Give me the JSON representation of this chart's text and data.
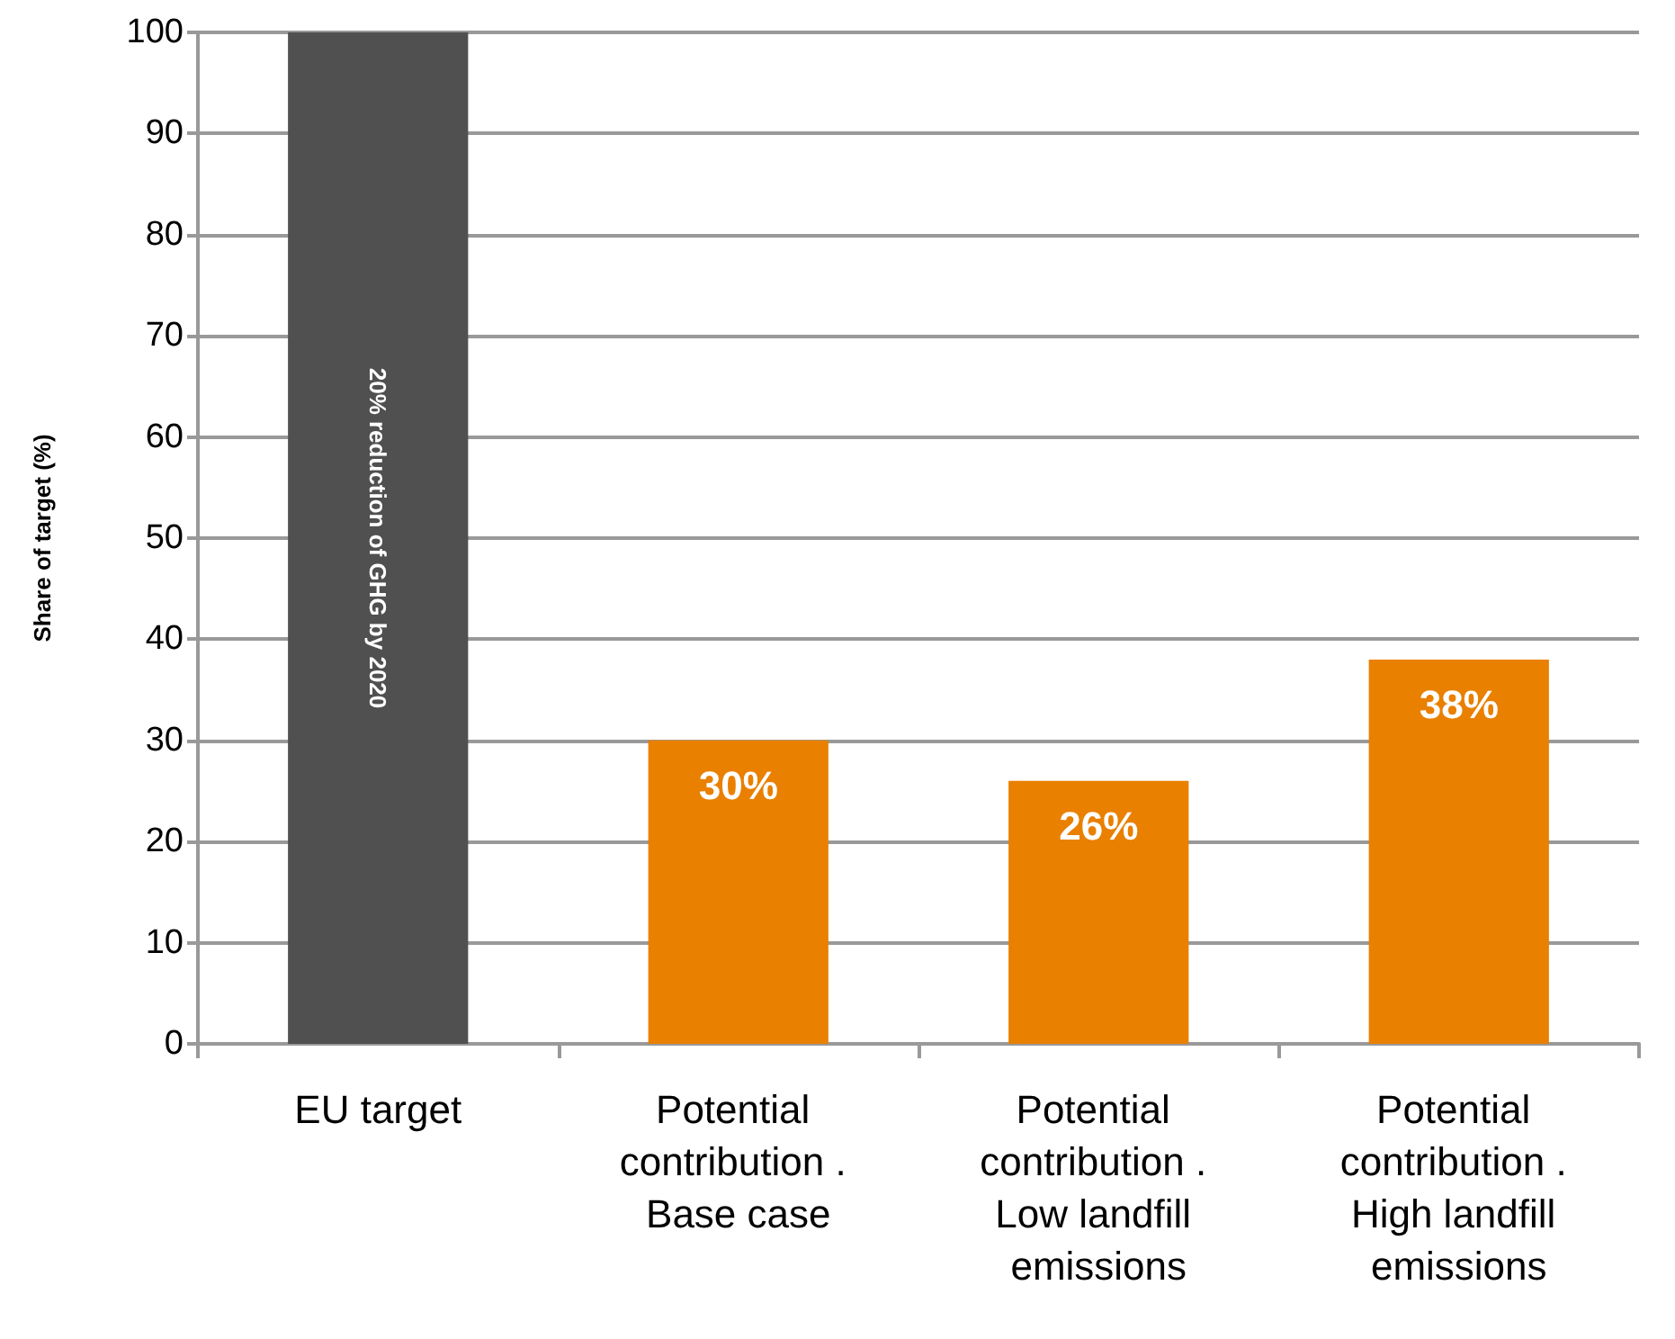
{
  "chart_data": {
    "type": "bar",
    "ylabel": "Share of target (%)",
    "categories": [
      "EU target",
      "Potential contribution . Base case",
      "Potential contribution . Low landfill emissions",
      "Potential contribution . High landfill emissions"
    ],
    "values": [
      100,
      30,
      26,
      38
    ],
    "colors": [
      "#505050",
      "#e98000",
      "#e98000",
      "#e98000"
    ],
    "value_labels": [
      null,
      "30%",
      "26%",
      "38%"
    ],
    "annotations": [
      "20% reduction of GHG by 2020"
    ],
    "ylim": [
      0,
      100
    ],
    "yticks": [
      0,
      10,
      20,
      30,
      40,
      50,
      60,
      70,
      80,
      90,
      100
    ],
    "grid": "y"
  }
}
